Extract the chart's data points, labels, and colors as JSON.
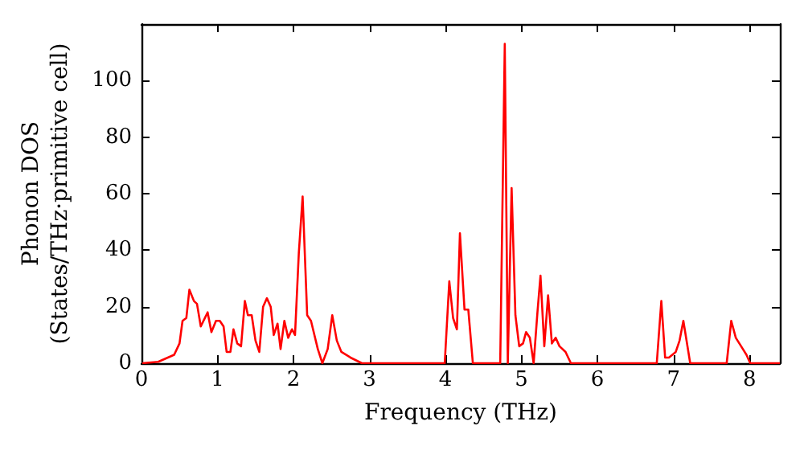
{
  "chart_data": {
    "type": "line",
    "xlabel": "Frequency (THz)",
    "ylabel": "Phonon DOS\n(States/THz·primitive cell)",
    "xlim": [
      0,
      8.4
    ],
    "xticks": [
      0,
      1,
      2,
      3,
      4,
      5,
      6,
      7,
      8
    ],
    "ylim": [
      0,
      120
    ],
    "yticks": [
      0,
      20,
      40,
      60,
      80,
      100
    ],
    "grid": false,
    "marker": "none",
    "line_style": "solid",
    "series": [
      {
        "color": "#ff0000",
        "x": [
          0.01,
          0.22,
          0.43,
          0.5,
          0.54,
          0.59,
          0.63,
          0.69,
          0.73,
          0.78,
          0.87,
          0.92,
          0.98,
          1.03,
          1.08,
          1.12,
          1.17,
          1.21,
          1.26,
          1.31,
          1.36,
          1.4,
          1.45,
          1.5,
          1.55,
          1.6,
          1.65,
          1.7,
          1.74,
          1.79,
          1.83,
          1.88,
          1.93,
          1.98,
          2.02,
          2.07,
          2.12,
          2.18,
          2.23,
          2.32,
          2.38,
          2.45,
          2.51,
          2.57,
          2.63,
          2.75,
          2.9,
          3.99,
          4.05,
          4.1,
          4.15,
          4.19,
          4.25,
          4.3,
          4.36,
          4.72,
          4.78,
          4.82,
          4.87,
          4.92,
          4.97,
          5.02,
          5.06,
          5.11,
          5.16,
          5.21,
          5.25,
          5.3,
          5.35,
          5.4,
          5.45,
          5.5,
          5.58,
          5.65,
          6.78,
          6.84,
          6.89,
          6.94,
          7.03,
          7.08,
          7.13,
          7.22,
          7.7,
          7.76,
          7.82,
          7.89,
          7.96,
          8.01,
          8.4
        ],
        "values": [
          0,
          0.5,
          3,
          7,
          15,
          16,
          26,
          22,
          21,
          13,
          18,
          11,
          15,
          15,
          13,
          4,
          4,
          12,
          7,
          6,
          22,
          17,
          17,
          8,
          4,
          20,
          23,
          20,
          10,
          14,
          5,
          15,
          9,
          12,
          10,
          39,
          59,
          17,
          15,
          5,
          0,
          5,
          17,
          8,
          4,
          2,
          0,
          0,
          29,
          16,
          12,
          46,
          19,
          19,
          0,
          0,
          113,
          0,
          62,
          17,
          6,
          7,
          11,
          9,
          0,
          18,
          31,
          6,
          24,
          7,
          9,
          6,
          4,
          0,
          0,
          22,
          2,
          2,
          4,
          8,
          15,
          0,
          0,
          15,
          9,
          6,
          3,
          0,
          0
        ]
      }
    ]
  }
}
